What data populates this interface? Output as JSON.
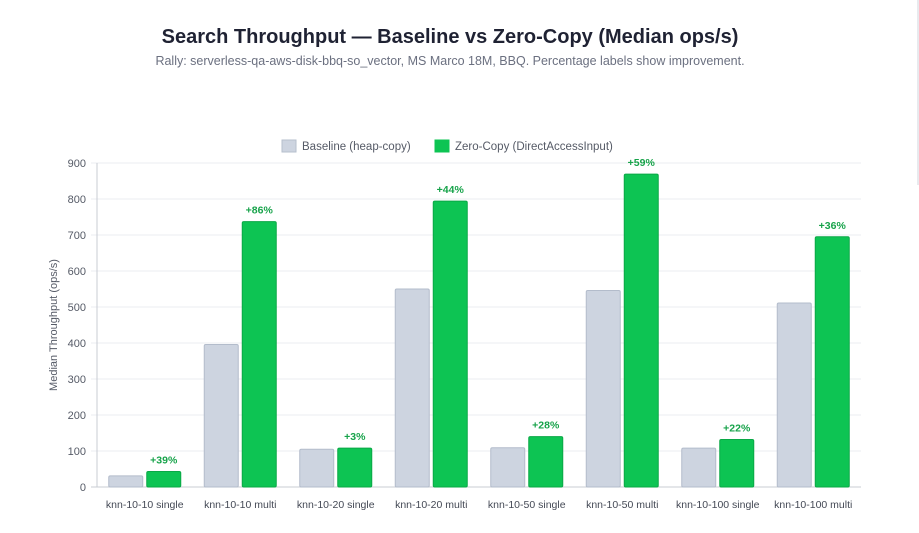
{
  "header": {
    "title": "Search Throughput — Baseline vs Zero-Copy (Median ops/s)",
    "subtitle": "Rally: serverless-qa-aws-disk-bbq-so_vector, MS Marco 18M, BBQ. Percentage labels show improvement."
  },
  "colors": {
    "baseline": "#cdd4e0",
    "zerocopy": "#0dc453",
    "label": "#17a34a",
    "grid": "#ebedf1"
  },
  "chart_data": {
    "type": "bar",
    "categories": [
      "knn-10-10 single",
      "knn-10-10 multi",
      "knn-10-20 single",
      "knn-10-20 multi",
      "knn-10-50 single",
      "knn-10-50 multi",
      "knn-10-100 single",
      "knn-10-100 multi"
    ],
    "series": [
      {
        "name": "Baseline (heap-copy)",
        "values": [
          31,
          396,
          105,
          550,
          109,
          546,
          108,
          511
        ]
      },
      {
        "name": "Zero-Copy (DirectAccessInput)",
        "values": [
          43,
          737,
          108,
          794,
          140,
          869,
          132,
          695
        ]
      }
    ],
    "annotations": [
      "+39%",
      "+86%",
      "+3%",
      "+44%",
      "+28%",
      "+59%",
      "+22%",
      "+36%"
    ],
    "xlabel": "",
    "ylabel": "Median Throughput (ops/s)",
    "ylim": [
      0,
      900
    ],
    "yticks": [
      0,
      100,
      200,
      300,
      400,
      500,
      600,
      700,
      800,
      900
    ],
    "grid": true,
    "legend": "top-center"
  }
}
